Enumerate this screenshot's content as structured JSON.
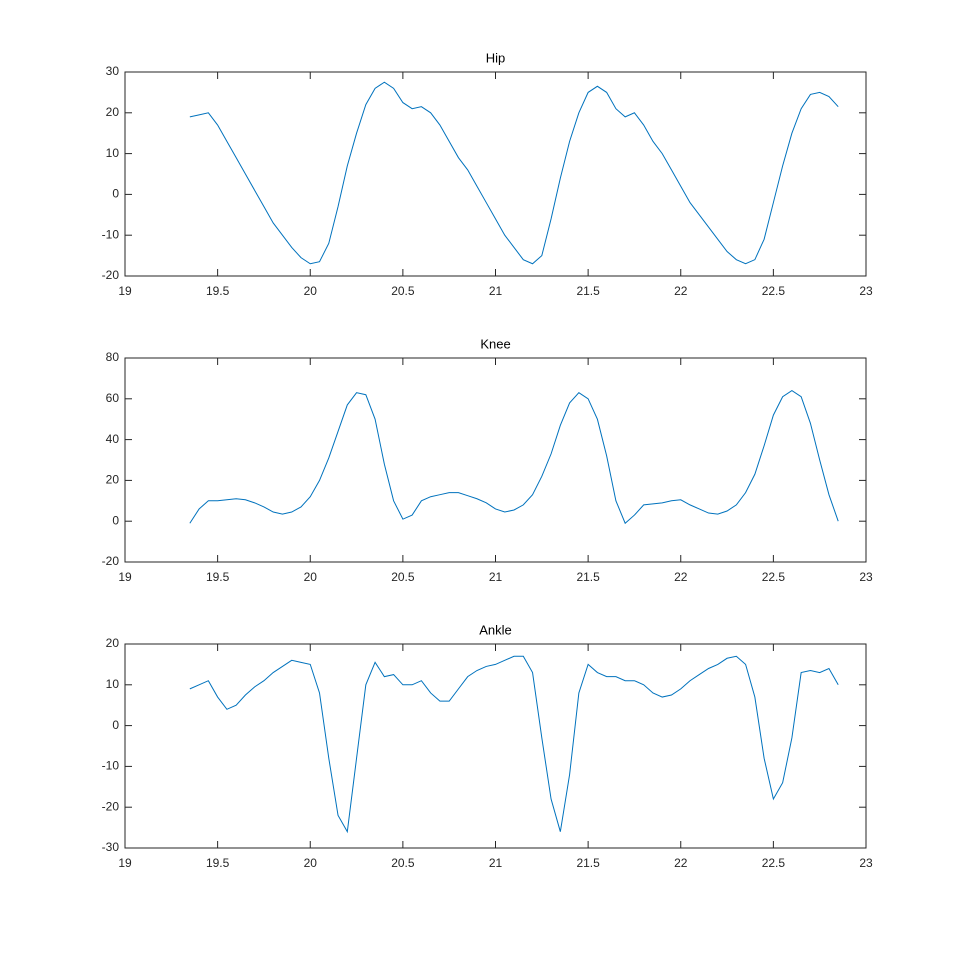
{
  "chart_data": [
    {
      "type": "line",
      "title": "Hip",
      "x": [
        19.35,
        19.4,
        19.45,
        19.5,
        19.55,
        19.6,
        19.65,
        19.7,
        19.75,
        19.8,
        19.85,
        19.9,
        19.95,
        20,
        20.05,
        20.1,
        20.15,
        20.2,
        20.25,
        20.3,
        20.35,
        20.4,
        20.45,
        20.5,
        20.55,
        20.6,
        20.65,
        20.7,
        20.75,
        20.8,
        20.85,
        20.9,
        20.95,
        21,
        21.05,
        21.1,
        21.15,
        21.2,
        21.25,
        21.3,
        21.35,
        21.4,
        21.45,
        21.5,
        21.55,
        21.6,
        21.65,
        21.7,
        21.75,
        21.8,
        21.85,
        21.9,
        21.95,
        22,
        22.05,
        22.1,
        22.15,
        22.2,
        22.25,
        22.3,
        22.35,
        22.4,
        22.45,
        22.5,
        22.55,
        22.6,
        22.65,
        22.7,
        22.75,
        22.8,
        22.85
      ],
      "series": [
        {
          "color": "#0072bd",
          "values": [
            19,
            19.5,
            20,
            17,
            13,
            9,
            5,
            1,
            -3,
            -7,
            -10,
            -13,
            -15.5,
            -17,
            -16.5,
            -12,
            -3,
            7,
            15,
            22,
            26,
            27.5,
            26,
            22.5,
            21,
            21.5,
            20,
            17,
            13,
            9,
            6,
            2,
            -2,
            -6,
            -10,
            -13,
            -16,
            -17,
            -15,
            -6,
            4,
            13,
            20,
            25,
            26.5,
            25,
            21,
            19,
            20,
            17,
            13,
            10,
            6,
            2,
            -2,
            -5,
            -8,
            -11,
            -14,
            -16,
            -17,
            -16,
            -11,
            -2,
            7,
            15,
            21,
            24.5,
            25,
            24,
            21.5
          ]
        }
      ],
      "xlim": [
        19,
        23
      ],
      "xticks": [
        19,
        19.5,
        20,
        20.5,
        21,
        21.5,
        22,
        22.5,
        23
      ],
      "ylim": [
        -20,
        30
      ],
      "yticks": [
        -20,
        -10,
        0,
        10,
        20,
        30
      ]
    },
    {
      "type": "line",
      "title": "Knee",
      "x": [
        19.35,
        19.4,
        19.45,
        19.5,
        19.55,
        19.6,
        19.65,
        19.7,
        19.75,
        19.8,
        19.85,
        19.9,
        19.95,
        20,
        20.05,
        20.1,
        20.15,
        20.2,
        20.25,
        20.3,
        20.35,
        20.4,
        20.45,
        20.5,
        20.55,
        20.6,
        20.65,
        20.7,
        20.75,
        20.8,
        20.85,
        20.9,
        20.95,
        21,
        21.05,
        21.1,
        21.15,
        21.2,
        21.25,
        21.3,
        21.35,
        21.4,
        21.45,
        21.5,
        21.55,
        21.6,
        21.65,
        21.7,
        21.75,
        21.8,
        21.85,
        21.9,
        21.95,
        22,
        22.05,
        22.1,
        22.15,
        22.2,
        22.25,
        22.3,
        22.35,
        22.4,
        22.45,
        22.5,
        22.55,
        22.6,
        22.65,
        22.7,
        22.75,
        22.8,
        22.85
      ],
      "series": [
        {
          "color": "#0072bd",
          "values": [
            -1,
            6,
            10,
            10,
            10.5,
            11,
            10.5,
            9,
            7,
            4.5,
            3.5,
            4.5,
            7,
            12,
            20,
            31,
            44,
            57,
            63,
            62,
            50,
            28,
            10,
            1,
            3,
            10,
            12,
            13,
            14,
            14,
            12.5,
            11,
            9,
            6,
            4.5,
            5.5,
            8,
            13,
            22,
            33,
            47,
            58,
            63,
            60,
            50,
            32,
            10,
            -1,
            3,
            8,
            8.5,
            9,
            10,
            10.5,
            8,
            6,
            4,
            3.5,
            5,
            8,
            14,
            23,
            37,
            52,
            61,
            64,
            61,
            48,
            30,
            13,
            0
          ]
        }
      ],
      "xlim": [
        19,
        23
      ],
      "xticks": [
        19,
        19.5,
        20,
        20.5,
        21,
        21.5,
        22,
        22.5,
        23
      ],
      "ylim": [
        -20,
        80
      ],
      "yticks": [
        -20,
        0,
        20,
        40,
        60,
        80
      ]
    },
    {
      "type": "line",
      "title": "Ankle",
      "x": [
        19.35,
        19.4,
        19.45,
        19.5,
        19.55,
        19.6,
        19.65,
        19.7,
        19.75,
        19.8,
        19.85,
        19.9,
        19.95,
        20,
        20.05,
        20.1,
        20.15,
        20.2,
        20.25,
        20.3,
        20.35,
        20.4,
        20.45,
        20.5,
        20.55,
        20.6,
        20.65,
        20.7,
        20.75,
        20.8,
        20.85,
        20.9,
        20.95,
        21,
        21.05,
        21.1,
        21.15,
        21.2,
        21.25,
        21.3,
        21.35,
        21.4,
        21.45,
        21.5,
        21.55,
        21.6,
        21.65,
        21.7,
        21.75,
        21.8,
        21.85,
        21.9,
        21.95,
        22,
        22.05,
        22.1,
        22.15,
        22.2,
        22.25,
        22.3,
        22.35,
        22.4,
        22.45,
        22.5,
        22.55,
        22.6,
        22.65,
        22.7,
        22.75,
        22.8,
        22.85
      ],
      "series": [
        {
          "color": "#0072bd",
          "values": [
            9,
            10,
            11,
            7,
            4,
            5,
            7.5,
            9.5,
            11,
            13,
            14.5,
            16,
            15.5,
            15,
            8,
            -8,
            -22,
            -26,
            -8,
            10,
            15.5,
            12,
            12.5,
            10,
            10,
            11,
            8,
            6,
            6,
            9,
            12,
            13.5,
            14.5,
            15,
            16,
            17,
            17,
            13,
            -3,
            -18,
            -26,
            -12,
            8,
            15,
            13,
            12,
            12,
            11,
            11,
            10,
            8,
            7,
            7.5,
            9,
            11,
            12.5,
            14,
            15,
            16.5,
            17,
            15,
            7,
            -8,
            -18,
            -14,
            -3,
            13,
            13.5,
            13,
            14,
            10
          ]
        }
      ],
      "xlim": [
        19,
        23
      ],
      "xticks": [
        19,
        19.5,
        20,
        20.5,
        21,
        21.5,
        22,
        22.5,
        23
      ],
      "ylim": [
        -30,
        20
      ],
      "yticks": [
        -30,
        -20,
        -10,
        0,
        10,
        20
      ]
    }
  ]
}
